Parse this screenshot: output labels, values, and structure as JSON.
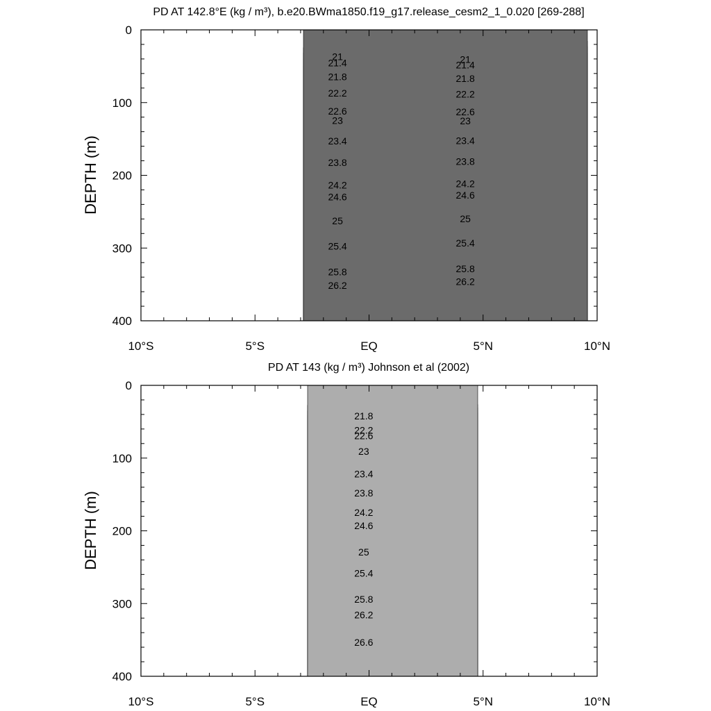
{
  "chart_data": [
    {
      "type": "contour",
      "title": "PD AT 142.8°E (kg / m³), b.e20.BWma1850.f19_g17.release_cesm2_1_0.020 [269-288]",
      "ylabel": "DEPTH (m)",
      "xlim": [
        -10,
        10
      ],
      "ylim": [
        400,
        0
      ],
      "xtick_labels": [
        "10°S",
        "5°S",
        "EQ",
        "5°N",
        "10°N"
      ],
      "ytick_labels": [
        "0",
        "100",
        "200",
        "300",
        "400"
      ],
      "data_extent_x": [
        -3.1,
        10
      ],
      "contour_labels": [
        "21",
        "21.4",
        "21.8",
        "22.2",
        "22.6",
        "23",
        "23.4",
        "23.8",
        "24.2",
        "24.6",
        "25",
        "25.4",
        "25.8",
        "26.2"
      ]
    },
    {
      "type": "contour",
      "title": "PD AT 143 (kg / m³) Johnson et al (2002)",
      "ylabel": "DEPTH (m)",
      "xlim": [
        -10,
        10
      ],
      "ylim": [
        400,
        0
      ],
      "xtick_labels": [
        "10°S",
        "5°S",
        "EQ",
        "5°N",
        "10°N"
      ],
      "ytick_labels": [
        "0",
        "100",
        "200",
        "300",
        "400"
      ],
      "data_extent_x": [
        -2.8,
        5
      ],
      "contour_labels": [
        "21.8",
        "22.2",
        "22.6",
        "23",
        "23.4",
        "23.8",
        "24.2",
        "24.6",
        "25",
        "25.4",
        "25.8",
        "26.2",
        "26.6"
      ]
    }
  ],
  "colors": {
    "levels": [
      "#6b6b6b",
      "#adadad",
      "#ff00ff",
      "#d400e8",
      "#9a1aff",
      "#4040ff",
      "#0000ee",
      "#0060ff",
      "#0099ff",
      "#20c8ff",
      "#40e6ff",
      "#60ffee",
      "#20ffb0",
      "#00ff50",
      "#40ff00",
      "#aaff00",
      "#ffff00",
      "#ffd800",
      "#ffb400",
      "#ff9a00",
      "#ff7a00",
      "#ff5500",
      "#ff2000",
      "#ff0000",
      "#e40000",
      "#c80000"
    ]
  }
}
